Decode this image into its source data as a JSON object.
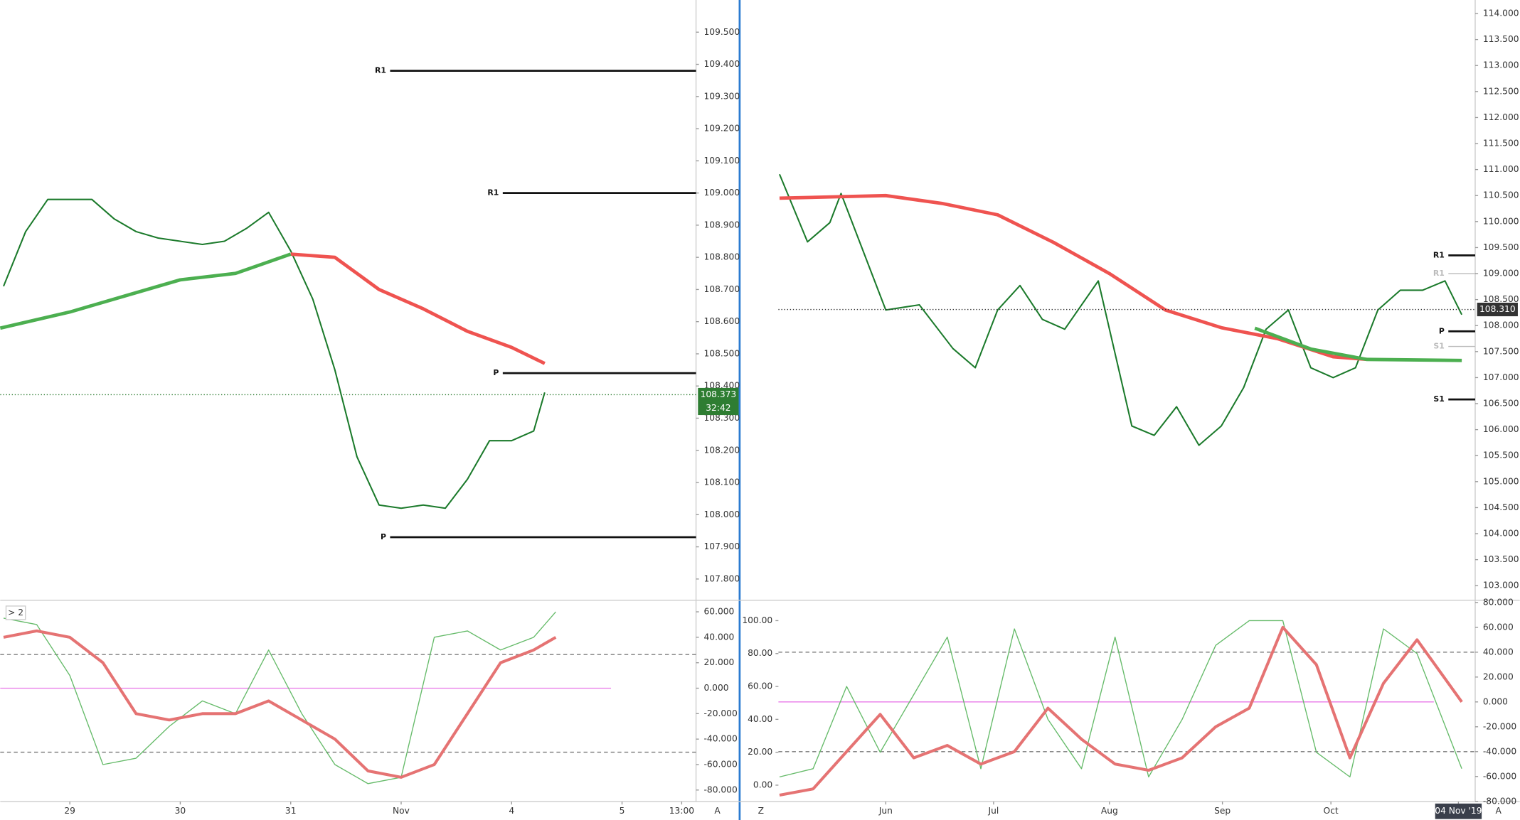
{
  "chart_data": [
    {
      "type": "line",
      "xlim": [
        -0.63,
        5.67
      ],
      "xticks": [
        {
          "value": 0,
          "label": "29"
        },
        {
          "value": 1,
          "label": "30"
        },
        {
          "value": 2,
          "label": "31"
        },
        {
          "value": 3,
          "label": "Nov"
        },
        {
          "value": 4,
          "label": "4"
        },
        {
          "value": 5,
          "label": "5"
        },
        {
          "value": 5.54,
          "label": "13:00"
        }
      ],
      "ylim": [
        107.734,
        109.6
      ],
      "yticks": [
        {
          "value": 107.8,
          "label": "107.800"
        },
        {
          "value": 107.9,
          "label": "107.900"
        },
        {
          "value": 108.0,
          "label": "108.000"
        },
        {
          "value": 108.1,
          "label": "108.100"
        },
        {
          "value": 108.2,
          "label": "108.200"
        },
        {
          "value": 108.3,
          "label": "108.300"
        },
        {
          "value": 108.4,
          "label": "108.400"
        },
        {
          "value": 108.5,
          "label": "108.500"
        },
        {
          "value": 108.6,
          "label": "108.600"
        },
        {
          "value": 108.7,
          "label": "108.700"
        },
        {
          "value": 108.8,
          "label": "108.800"
        },
        {
          "value": 108.9,
          "label": "108.900"
        },
        {
          "value": 109.0,
          "label": "109.000"
        },
        {
          "value": 109.1,
          "label": "109.100"
        },
        {
          "value": 109.2,
          "label": "109.200"
        },
        {
          "value": 109.3,
          "label": "109.300"
        },
        {
          "value": 109.4,
          "label": "109.400"
        },
        {
          "value": 109.5,
          "label": "109.500"
        }
      ],
      "axis_side": "right",
      "series": [
        {
          "color": "#1b7a2b",
          "width": 1.5,
          "x": [
            -0.6,
            -0.4,
            -0.2,
            0,
            0.2,
            0.4,
            0.6,
            0.8,
            1.0,
            1.2,
            1.4,
            1.6,
            1.8,
            2.0,
            2.2,
            2.4,
            2.6,
            2.8,
            3.0,
            3.2,
            3.4,
            3.6,
            3.8,
            4.0,
            4.2,
            4.3
          ],
          "values": [
            108.71,
            108.88,
            108.98,
            108.98,
            108.98,
            108.92,
            108.88,
            108.86,
            108.85,
            108.84,
            108.85,
            108.89,
            108.94,
            108.82,
            108.67,
            108.45,
            108.18,
            108.03,
            108.02,
            108.03,
            108.02,
            108.11,
            108.23,
            108.23,
            108.26,
            108.38
          ]
        },
        {
          "color": "#ef5350",
          "width": 3.5,
          "x": [
            2.0,
            2.4,
            2.8,
            3.2,
            3.6,
            4.0,
            4.3
          ],
          "values": [
            108.81,
            108.8,
            108.7,
            108.64,
            108.57,
            108.52,
            108.47
          ]
        },
        {
          "color": "#4caf50",
          "width": 3.5,
          "x": [
            -0.63,
            0,
            0.5,
            1.0,
            1.5,
            2.0
          ],
          "values": [
            108.58,
            108.63,
            108.68,
            108.73,
            108.75,
            108.81
          ]
        }
      ],
      "levels": [
        {
          "label": "R1",
          "value": 109.38,
          "x_start": 2.9,
          "color": "#111111"
        },
        {
          "label": "R1",
          "value": 109.0,
          "x_start": 3.92,
          "color": "#111111"
        },
        {
          "label": "P",
          "value": 108.44,
          "x_start": 3.92,
          "color": "#111111"
        },
        {
          "label": "P",
          "value": 107.93,
          "x_start": 2.9,
          "color": "#111111"
        }
      ],
      "price_tags": [
        {
          "label": "108.373",
          "value": 108.373,
          "color": "#2e7d32",
          "sub": "32:42"
        }
      ]
    },
    {
      "type": "line",
      "xlim": [
        -0.63,
        5.67
      ],
      "ylim": [
        -89.1,
        69.1
      ],
      "yticks": [
        {
          "value": -80,
          "label": "-80.000"
        },
        {
          "value": -60,
          "label": "-60.000"
        },
        {
          "value": -40,
          "label": "-40.000"
        },
        {
          "value": -20,
          "label": "-20.000"
        },
        {
          "value": 0,
          "label": "0.000"
        },
        {
          "value": 20,
          "label": "20.000"
        },
        {
          "value": 40,
          "label": "40.000"
        },
        {
          "value": 60,
          "label": "60.000"
        }
      ],
      "axis_side": "right",
      "pane_tag": "> 2",
      "series": [
        {
          "color": "#66bb6a",
          "width": 1,
          "x": [
            -0.6,
            -0.3,
            0,
            0.3,
            0.6,
            0.9,
            1.2,
            1.5,
            1.8,
            2.1,
            2.4,
            2.7,
            3.0,
            3.3,
            3.6,
            3.9,
            4.2,
            4.4
          ],
          "values": [
            55,
            50,
            10,
            -60,
            -55,
            -30,
            -10,
            -20,
            30,
            -20,
            -60,
            -75,
            -70,
            40,
            45,
            30,
            40,
            60
          ]
        },
        {
          "color": "#e57373",
          "width": 3,
          "x": [
            -0.6,
            -0.3,
            0,
            0.3,
            0.6,
            0.9,
            1.2,
            1.5,
            1.8,
            2.1,
            2.4,
            2.7,
            3.0,
            3.3,
            3.6,
            3.9,
            4.2,
            4.4
          ],
          "values": [
            40,
            45,
            40,
            20,
            -20,
            -25,
            -20,
            -20,
            -10,
            -25,
            -40,
            -65,
            -70,
            -60,
            -20,
            20,
            30,
            40
          ]
        }
      ],
      "hlines": [
        {
          "value": 26.5,
          "color": "#777777",
          "dash": true
        },
        {
          "value": 0,
          "color": "#e879e8",
          "dash": false
        },
        {
          "value": -50.3,
          "color": "#777777",
          "dash": true
        }
      ]
    },
    {
      "type": "line",
      "xlim": [
        -0.96,
        5.27
      ],
      "xticks": [
        {
          "value": 0,
          "label": "Jun"
        },
        {
          "value": 0.964,
          "label": "Jul"
        },
        {
          "value": 2.0,
          "label": "Aug"
        },
        {
          "value": 3.01,
          "label": "Sep"
        },
        {
          "value": 3.98,
          "label": "Oct"
        },
        {
          "value": 5.12,
          "label": "04 Nov '19"
        }
      ],
      "highlight_last_xtick": true,
      "ylim": [
        102.72,
        114.26
      ],
      "yticks": [
        {
          "value": 103.0,
          "label": "103.000"
        },
        {
          "value": 103.5,
          "label": "103.500"
        },
        {
          "value": 104.0,
          "label": "104.000"
        },
        {
          "value": 104.5,
          "label": "104.500"
        },
        {
          "value": 105.0,
          "label": "105.000"
        },
        {
          "value": 105.5,
          "label": "105.500"
        },
        {
          "value": 106.0,
          "label": "106.000"
        },
        {
          "value": 106.5,
          "label": "106.500"
        },
        {
          "value": 107.0,
          "label": "107.000"
        },
        {
          "value": 107.5,
          "label": "107.500"
        },
        {
          "value": 108.0,
          "label": "108.000"
        },
        {
          "value": 108.5,
          "label": "108.500"
        },
        {
          "value": 109.0,
          "label": "109.000"
        },
        {
          "value": 109.5,
          "label": "109.500"
        },
        {
          "value": 110.0,
          "label": "110.000"
        },
        {
          "value": 110.5,
          "label": "110.500"
        },
        {
          "value": 111.0,
          "label": "111.000"
        },
        {
          "value": 111.5,
          "label": "111.500"
        },
        {
          "value": 112.0,
          "label": "112.000"
        },
        {
          "value": 112.5,
          "label": "112.500"
        },
        {
          "value": 113.0,
          "label": "113.000"
        },
        {
          "value": 113.5,
          "label": "113.500"
        },
        {
          "value": 114.0,
          "label": "114.000"
        }
      ],
      "axis_side": "right",
      "series": [
        {
          "color": "#1b7a2b",
          "width": 1.5,
          "x": [
            -0.95,
            -0.7,
            -0.5,
            -0.4,
            -0.2,
            0,
            0.3,
            0.6,
            0.8,
            1.0,
            1.2,
            1.4,
            1.6,
            1.9,
            2.0,
            2.2,
            2.4,
            2.6,
            2.8,
            3.0,
            3.2,
            3.4,
            3.6,
            3.8,
            4.0,
            4.2,
            4.4,
            4.6,
            4.8,
            5.0,
            5.15
          ],
          "values": [
            110.91,
            109.61,
            109.98,
            110.54,
            109.42,
            108.3,
            108.4,
            107.56,
            107.19,
            108.3,
            108.77,
            108.12,
            107.93,
            108.86,
            107.93,
            106.07,
            105.89,
            106.44,
            105.7,
            106.07,
            106.81,
            107.93,
            108.3,
            107.19,
            107.0,
            107.19,
            108.3,
            108.68,
            108.68,
            108.86,
            108.21
          ]
        },
        {
          "color": "#ef5350",
          "width": 3.5,
          "x": [
            -0.95,
            0,
            0.5,
            1.0,
            1.5,
            2.0,
            2.5,
            3.0,
            3.5,
            4.0,
            4.3
          ],
          "values": [
            110.45,
            110.5,
            110.35,
            110.13,
            109.6,
            109.0,
            108.3,
            107.96,
            107.75,
            107.4,
            107.35
          ]
        },
        {
          "color": "#4caf50",
          "width": 3.5,
          "x": [
            3.3,
            3.8,
            4.3,
            5.15
          ],
          "values": [
            107.95,
            107.55,
            107.35,
            107.33
          ]
        }
      ],
      "levels": [
        {
          "label": "R1",
          "value": 109.35,
          "x_start": 5.03,
          "color": "#111111"
        },
        {
          "label": "R1",
          "value": 109.0,
          "x_start": 5.03,
          "color": "#bbbbbb"
        },
        {
          "label": "P",
          "value": 107.89,
          "x_start": 5.03,
          "color": "#111111"
        },
        {
          "label": "S1",
          "value": 107.6,
          "x_start": 5.03,
          "color": "#bbbbbb"
        },
        {
          "label": "S1",
          "value": 106.58,
          "x_start": 5.03,
          "color": "#111111"
        }
      ],
      "price_tags": [
        {
          "label": "108.310",
          "value": 108.31,
          "color": "#333333"
        }
      ]
    },
    {
      "type": "line",
      "xlim": [
        -0.96,
        5.27
      ],
      "ylim": [
        -10,
        112.4
      ],
      "yticks": [
        {
          "value": 0,
          "label": "0.00"
        },
        {
          "value": 20,
          "label": "20.00"
        },
        {
          "value": 40,
          "label": "40.00"
        },
        {
          "value": 60,
          "label": "60.00"
        },
        {
          "value": 80,
          "label": "80.00"
        },
        {
          "value": 100,
          "label": "100.00"
        }
      ],
      "axis_side": "left",
      "y2lim": [
        -80.2,
        81.8
      ],
      "y2ticks": [
        {
          "value": -80,
          "label": "-80.000"
        },
        {
          "value": -60,
          "label": "-60.000"
        },
        {
          "value": -40,
          "label": "-40.000"
        },
        {
          "value": -20,
          "label": "-20.000"
        },
        {
          "value": 0,
          "label": "0.000"
        },
        {
          "value": 20,
          "label": "20.000"
        },
        {
          "value": 40,
          "label": "40.000"
        },
        {
          "value": 60,
          "label": "60.000"
        },
        {
          "value": 80,
          "label": "80.000"
        }
      ],
      "series": [
        {
          "color": "#66bb6a",
          "width": 1,
          "x": [
            -0.95,
            -0.65,
            -0.35,
            -0.05,
            0.25,
            0.55,
            0.85,
            1.15,
            1.45,
            1.75,
            2.05,
            2.35,
            2.65,
            2.95,
            3.25,
            3.55,
            3.85,
            4.15,
            4.45,
            4.75,
            5.15
          ],
          "values": [
            5,
            10,
            60,
            20,
            55,
            90,
            10,
            95,
            40,
            10,
            90,
            5,
            40,
            85,
            100,
            100,
            20,
            5,
            95,
            80,
            10
          ]
        },
        {
          "color": "#e57373",
          "width": 3,
          "axis": "y2",
          "x": [
            -0.95,
            -0.65,
            -0.35,
            -0.05,
            0.25,
            0.55,
            0.85,
            1.15,
            1.45,
            1.75,
            2.05,
            2.35,
            2.65,
            2.95,
            3.25,
            3.55,
            3.85,
            4.15,
            4.45,
            4.75,
            5.15
          ],
          "values": [
            -75,
            -70,
            -40,
            -10,
            -45,
            -35,
            -50,
            -40,
            -5,
            -30,
            -50,
            -55,
            -45,
            -20,
            -5,
            60,
            30,
            -45,
            15,
            50,
            0
          ]
        }
      ],
      "hlines": [
        {
          "value": 40,
          "axis": "y2",
          "color": "#777777",
          "dash": true
        },
        {
          "value": 0,
          "axis": "y2",
          "color": "#e879e8",
          "dash": false
        },
        {
          "value": -40,
          "axis": "y2",
          "color": "#777777",
          "dash": true
        }
      ]
    }
  ],
  "ui": {
    "left_auto": "A",
    "right_auto": "A",
    "zoom": "Z"
  }
}
